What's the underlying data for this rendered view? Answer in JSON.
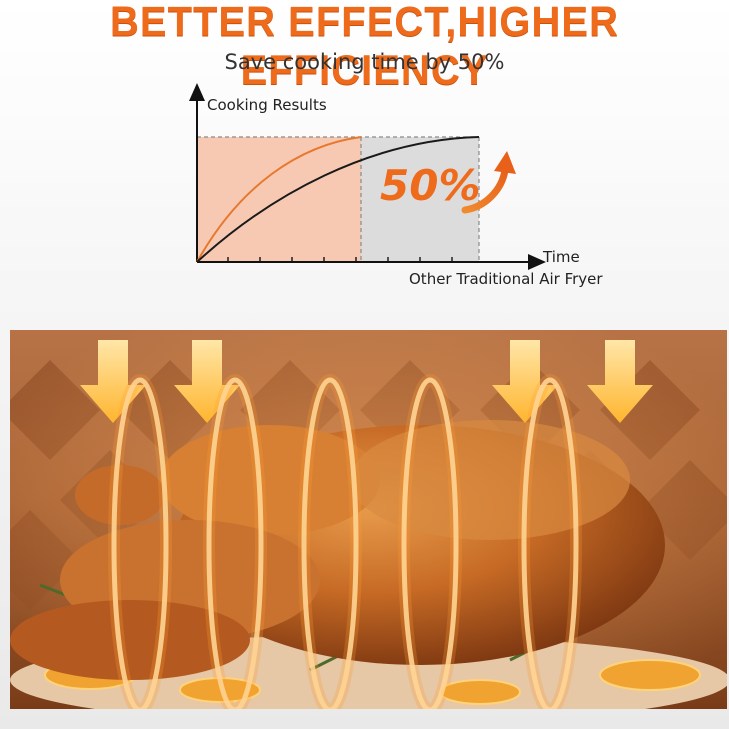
{
  "header": {
    "title": "BETTER EFFECT,HIGHER EFFICIENCY",
    "subtitle": "Save cooking time by 50%"
  },
  "chart": {
    "y_axis_label": "Cooking Results",
    "x_axis_label": "Time",
    "x_caption": "Other Traditional Air Fryer",
    "badge": "50%"
  },
  "colors": {
    "accent": "#ef6b1c",
    "fast_zone": "#f7c9b2",
    "slow_zone": "#d9d9d9",
    "fast_curve": "#e8782e",
    "slow_curve": "#1a1a1a"
  },
  "photo": {
    "subject": "roast-chicken",
    "overlay_icons": [
      "down-arrow-icon",
      "heat-loop-icon"
    ]
  }
}
